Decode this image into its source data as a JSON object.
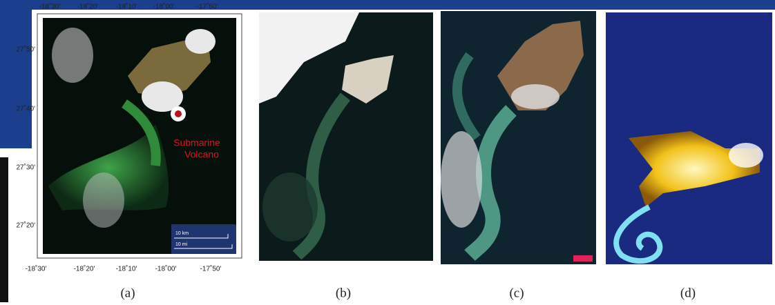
{
  "panels": [
    {
      "caption": "(a)",
      "top_ticks": [
        "-18˚30'",
        "-18˚20'",
        "-18˚10'",
        "-18˚00'",
        "-17˚50'"
      ],
      "left_ticks": [
        "27˚50'",
        "27˚40'",
        "27˚30'",
        "27˚20'"
      ],
      "bottom_ticks": [
        "-18˚30'",
        "-18˚20'",
        "-18˚10'",
        "-18˚00'",
        "-17˚50'"
      ],
      "annotation": [
        "Submarine",
        "Volcano"
      ],
      "scale_bar": [
        "10 km",
        "10 mi"
      ]
    },
    {
      "caption": "(b)"
    },
    {
      "caption": "(c)"
    },
    {
      "caption": "(d)"
    }
  ]
}
